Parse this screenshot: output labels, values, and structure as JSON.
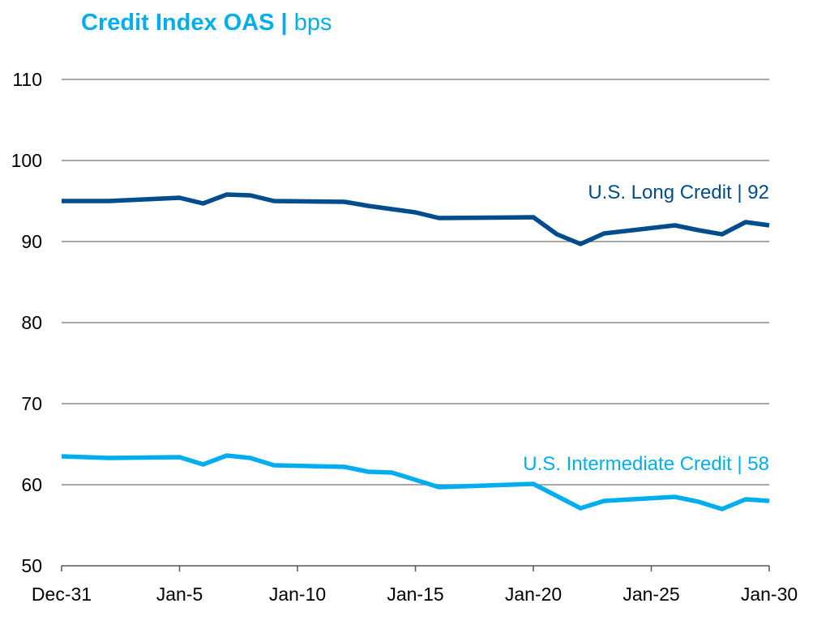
{
  "chart_data": {
    "type": "line",
    "title": "Credit Index OAS |",
    "title_unit": "bps",
    "xlabel": "",
    "ylabel": "",
    "ylim": [
      50,
      110
    ],
    "yticks": [
      50,
      60,
      70,
      80,
      90,
      100,
      110
    ],
    "xlim": [
      "Dec-31",
      "Jan-30"
    ],
    "xticks": [
      {
        "label": "Dec-31",
        "day": 0
      },
      {
        "label": "Jan-5",
        "day": 5
      },
      {
        "label": "Jan-10",
        "day": 10
      },
      {
        "label": "Jan-15",
        "day": 15
      },
      {
        "label": "Jan-20",
        "day": 20
      },
      {
        "label": "Jan-25",
        "day": 25
      },
      {
        "label": "Jan-30",
        "day": 30
      }
    ],
    "grid": true,
    "x": [
      "Dec-31",
      "Jan-2",
      "Jan-5",
      "Jan-6",
      "Jan-7",
      "Jan-8",
      "Jan-9",
      "Jan-12",
      "Jan-13",
      "Jan-14",
      "Jan-15",
      "Jan-16",
      "Jan-20",
      "Jan-21",
      "Jan-22",
      "Jan-23",
      "Jan-26",
      "Jan-27",
      "Jan-28",
      "Jan-29",
      "Jan-30"
    ],
    "series": [
      {
        "name": "U.S. Long Credit | 92",
        "color": "#004C8C",
        "values": [
          95.0,
          95.0,
          95.4,
          94.7,
          95.8,
          95.7,
          95.0,
          94.9,
          94.4,
          94.0,
          93.6,
          92.9,
          93.0,
          90.9,
          89.7,
          91.0,
          92.0,
          91.4,
          90.9,
          92.4,
          92.0
        ]
      },
      {
        "name": "U.S. Intermediate Credit | 58",
        "color": "#00AEEF",
        "values": [
          63.5,
          63.3,
          63.4,
          62.5,
          63.6,
          63.3,
          62.4,
          62.2,
          61.6,
          61.5,
          60.6,
          59.7,
          60.1,
          58.6,
          57.1,
          58.0,
          58.5,
          57.9,
          57.0,
          58.2,
          58.0
        ]
      }
    ]
  }
}
